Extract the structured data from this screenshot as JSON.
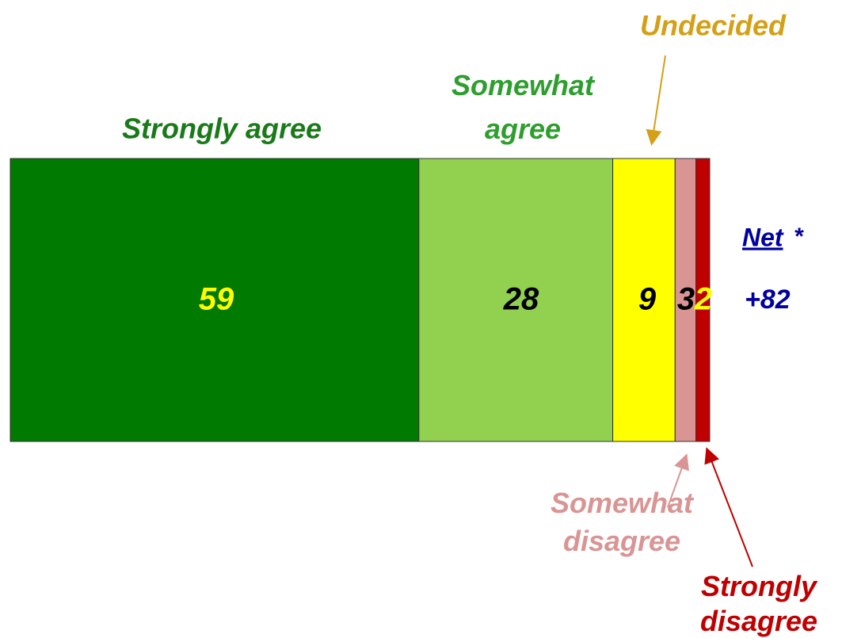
{
  "chart_data": {
    "type": "stacked-bar",
    "series": [
      {
        "name": "Strongly agree",
        "color": "#007a00",
        "label_color": "#ffff00",
        "name_color": "#1a7a1a",
        "values": [
          59
        ]
      },
      {
        "name": "Somewhat agree",
        "color": "#92d050",
        "label_color": "#000000",
        "name_color": "#2e9e2e",
        "values": [
          28
        ]
      },
      {
        "name": "Undecided",
        "color": "#ffff00",
        "label_color": "#000000",
        "name_color": "#d4a017",
        "values": [
          9
        ]
      },
      {
        "name": "Somewhat disagree",
        "color": "#d99594",
        "label_color": "#000000",
        "name_color": "#d99594",
        "values": [
          3
        ]
      },
      {
        "name": "Strongly disagree",
        "color": "#c00000",
        "label_color": "#ffff00",
        "name_color": "#c00000",
        "values": [
          2
        ]
      }
    ],
    "net_label": "Net",
    "net_marker": "*",
    "net_value_label": "+82"
  }
}
